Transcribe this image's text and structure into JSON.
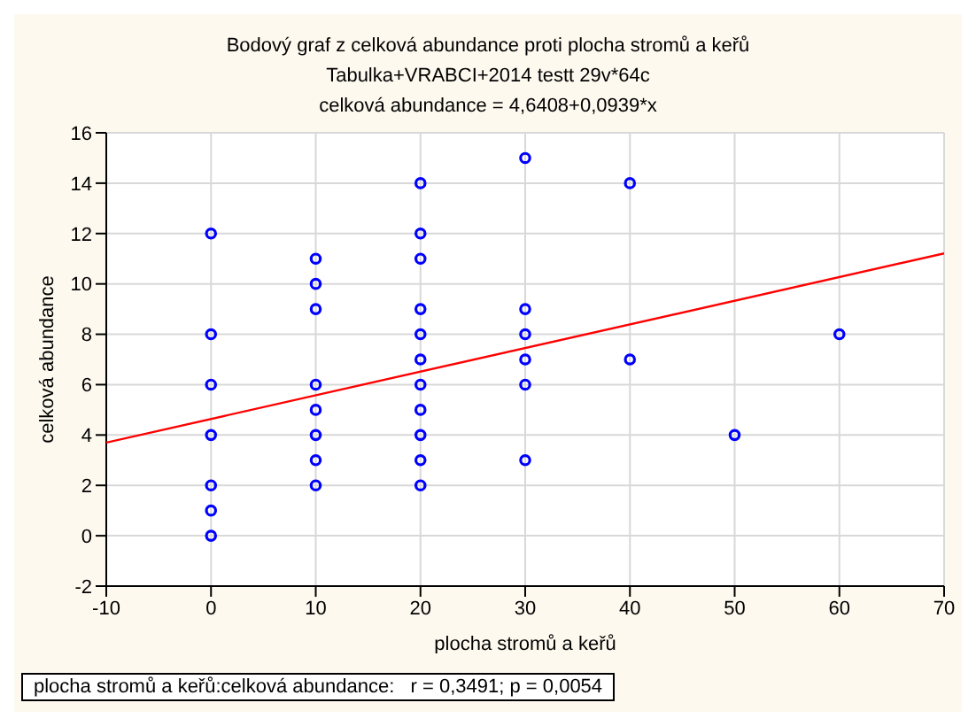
{
  "chart_data": {
    "type": "scatter",
    "title": "Bodový graf z celková abundance proti plocha stromů a keřů",
    "subtitle": "Tabulka+VRABCI+2014 testt 29v*64c",
    "annotations": [
      "celková abundance = 4,6408+0,0939*x",
      "plocha stromů a keřů:celková abundance:   r = 0,3491; p = 0,0054"
    ],
    "xlabel": "plocha stromů a keřů",
    "ylabel": "celková abundance",
    "xlim": [
      -10,
      70
    ],
    "xticks": [
      -10,
      0,
      10,
      20,
      30,
      40,
      50,
      60,
      70
    ],
    "ylim": [
      -2,
      16
    ],
    "yticks": [
      -2,
      0,
      2,
      4,
      6,
      8,
      10,
      12,
      14,
      16
    ],
    "grid": true,
    "marker": "circle",
    "series": [
      {
        "color": "#0000ff",
        "x": [
          0,
          0,
          0,
          0,
          0,
          0,
          0,
          10,
          10,
          10,
          10,
          10,
          10,
          10,
          10,
          20,
          20,
          20,
          20,
          20,
          20,
          20,
          20,
          20,
          20,
          20,
          30,
          30,
          30,
          30,
          30,
          30,
          40,
          40,
          50,
          60
        ],
        "values": [
          0,
          1,
          2,
          4,
          6,
          8,
          12,
          2,
          3,
          4,
          5,
          6,
          9,
          10,
          11,
          2,
          3,
          4,
          5,
          6,
          7,
          8,
          9,
          11,
          12,
          14,
          3,
          6,
          7,
          8,
          9,
          15,
          7,
          14,
          4,
          8
        ]
      },
      {
        "type": "line",
        "marker": "none",
        "color": "#ff0000",
        "x": [
          -10,
          70
        ],
        "values": [
          3.7,
          11.21
        ]
      }
    ]
  }
}
